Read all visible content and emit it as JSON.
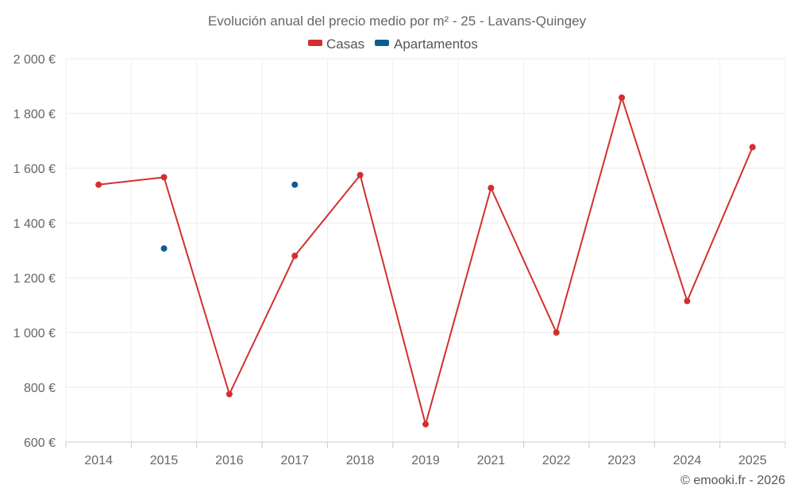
{
  "chart_data": {
    "type": "line",
    "title": "Evolución anual del precio medio por m² - 25 - Lavans-Quingey",
    "categories": [
      "2014",
      "2015",
      "2016",
      "2017",
      "2018",
      "2019",
      "2021",
      "2022",
      "2023",
      "2024",
      "2025"
    ],
    "series": [
      {
        "name": "Casas",
        "color": "#d32f2f",
        "values": [
          1540,
          1567,
          775,
          1280,
          1575,
          665,
          1528,
          1000,
          1858,
          1115,
          1677
        ]
      },
      {
        "name": "Apartamentos",
        "color": "#0d5d94",
        "values": [
          null,
          1307,
          null,
          1540,
          null,
          null,
          null,
          null,
          null,
          null,
          null
        ]
      }
    ],
    "yticks": [
      "600 €",
      "800 €",
      "1 000 €",
      "1 200 €",
      "1 400 €",
      "1 600 €",
      "1 800 €",
      "2 000 €"
    ],
    "ylim": [
      600,
      2000
    ],
    "grid": true,
    "legend": "top-center",
    "xlabel": "",
    "ylabel": ""
  },
  "credit": "© emooki.fr - 2026"
}
